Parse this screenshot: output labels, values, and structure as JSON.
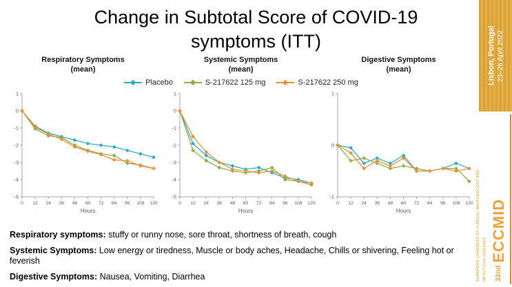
{
  "slide": {
    "title": "Change in Subtotal Score of COVID-19 symptoms (ITT)"
  },
  "legend": {
    "items": [
      {
        "label": "Placebo",
        "color": "#31A9C6"
      },
      {
        "label": "S-217622 125 mg",
        "color": "#8FAE4B"
      },
      {
        "label": "S-217622 250 mg",
        "color": "#EE8F35"
      }
    ]
  },
  "chart_data": [
    {
      "type": "line",
      "title": "Respiratory Symptoms",
      "subtitle": "(mean)",
      "xlabel": "Hours",
      "x": [
        0,
        12,
        24,
        36,
        48,
        60,
        72,
        84,
        96,
        108,
        120
      ],
      "xlim": [
        0,
        120
      ],
      "ylim": [
        -5,
        1
      ],
      "yticks": [
        1,
        0,
        -1,
        -2,
        -3,
        -4,
        -5
      ],
      "grid": false,
      "legend_position": "top-center-shared",
      "series": [
        {
          "name": "Placebo",
          "values": [
            0,
            -0.9,
            -1.3,
            -1.5,
            -1.7,
            -1.9,
            -2.0,
            -2.1,
            -2.3,
            -2.5,
            -2.7
          ]
        },
        {
          "name": "S-217622 125 mg",
          "values": [
            0,
            -1.05,
            -1.45,
            -1.55,
            -2.0,
            -2.3,
            -2.5,
            -2.6,
            -3.05,
            -3.15,
            -3.35
          ]
        },
        {
          "name": "S-217622 250 mg",
          "values": [
            0,
            -0.95,
            -1.35,
            -1.65,
            -2.1,
            -2.35,
            -2.55,
            -2.85,
            -2.9,
            -3.2,
            -3.35
          ]
        }
      ]
    },
    {
      "type": "line",
      "title": "Systemic Symptoms",
      "subtitle": "(mean)",
      "xlabel": "Hours",
      "x": [
        0,
        12,
        24,
        36,
        48,
        60,
        72,
        84,
        96,
        108,
        120
      ],
      "xlim": [
        0,
        120
      ],
      "ylim": [
        -5,
        1
      ],
      "yticks": [
        1,
        0,
        -1,
        -2,
        -3,
        -4,
        -5
      ],
      "grid": false,
      "series": [
        {
          "name": "Placebo",
          "values": [
            0,
            -1.9,
            -2.6,
            -3.0,
            -3.2,
            -3.4,
            -3.3,
            -3.6,
            -3.9,
            -4.0,
            -4.2
          ]
        },
        {
          "name": "S-217622 125 mg",
          "values": [
            0,
            -2.3,
            -2.9,
            -3.3,
            -3.5,
            -3.6,
            -3.5,
            -3.3,
            -4.0,
            -4.1,
            -4.3
          ]
        },
        {
          "name": "S-217622 250 mg",
          "values": [
            0,
            -1.5,
            -2.4,
            -3.0,
            -3.4,
            -3.5,
            -3.6,
            -3.5,
            -3.8,
            -4.1,
            -4.2
          ]
        }
      ]
    },
    {
      "type": "line",
      "title": "Digestive Symptoms",
      "subtitle": "(mean)",
      "xlabel": "Hours",
      "x": [
        0,
        12,
        24,
        36,
        48,
        60,
        72,
        84,
        96,
        108,
        120
      ],
      "xlim": [
        0,
        120
      ],
      "ylim": [
        -1,
        1
      ],
      "yticks": [
        1,
        0,
        -1
      ],
      "grid": false,
      "series": [
        {
          "name": "Placebo",
          "values": [
            0,
            -0.05,
            -0.35,
            -0.25,
            -0.35,
            -0.2,
            -0.5,
            -0.5,
            -0.45,
            -0.35,
            -0.45
          ]
        },
        {
          "name": "S-217622 125 mg",
          "values": [
            0,
            -0.3,
            -0.25,
            -0.35,
            -0.45,
            -0.4,
            -0.45,
            -0.5,
            -0.45,
            -0.45,
            -0.7
          ]
        },
        {
          "name": "S-217622 250 mg",
          "values": [
            0,
            -0.15,
            -0.45,
            -0.3,
            -0.4,
            -0.25,
            -0.5,
            -0.5,
            -0.45,
            -0.5,
            -0.45
          ]
        }
      ]
    }
  ],
  "footnotes": [
    {
      "bold": "Respiratory symptoms:",
      "text": " stuffy or runny nose, sore throat, shortness of breath, cough"
    },
    {
      "bold": "Systemic Symptoms:",
      "text": " Low energy or tiredness, Muscle or body aches, Headache, Chills or shivering, Feeling hot or feverish"
    },
    {
      "bold": "Digestive Symptoms:",
      "text": " Nausea, Vomiting, Diarrhea"
    }
  ],
  "banner": {
    "location": "Lisbon, Portugal",
    "dates": "23–26 April 2022",
    "congress_number": "32nd",
    "congress_name": "ECCMID",
    "congress_full": "EUROPEAN CONGRESS OF CLINICAL MICROBIOLOGY AND INFECTIOUS DISEASES",
    "gold_color": "#DFA43E",
    "orange_color": "#F0A03A"
  }
}
